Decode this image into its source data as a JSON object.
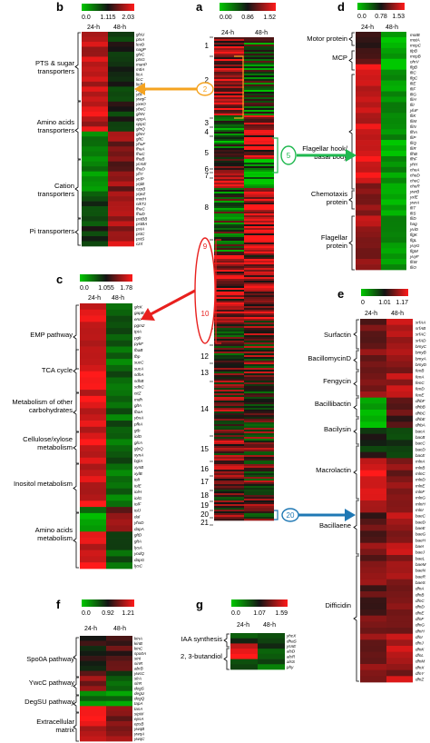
{
  "colors": {
    "low": "#00c800",
    "mid": "#141414",
    "high": "#ff1a1a",
    "orange": "#f5a320",
    "green": "#1fb84f",
    "red": "#e8201e",
    "blue": "#1f78b4"
  },
  "panels": {
    "a": {
      "label": "a",
      "ticks": [
        "0.00",
        "0.86",
        "1.52"
      ],
      "columns": [
        "24-h",
        "48-h"
      ],
      "clusters": [
        "1",
        "2",
        "3",
        "4",
        "5",
        "6",
        "7",
        "8",
        "9",
        "10",
        "11",
        "12",
        "13",
        "14",
        "15",
        "16",
        "17",
        "18",
        "19",
        "20",
        "21"
      ],
      "markers": {
        "m2": "2",
        "m5": "5",
        "m9": "9",
        "m10": "10",
        "m20": "20"
      }
    },
    "b": {
      "label": "b",
      "ticks": [
        "0.0",
        "1.115",
        "2.03"
      ],
      "columns": [
        "24-h",
        "48-h"
      ],
      "categories": [
        "PTS & sugar transporters",
        "Amino acids transporters",
        "Cation transporters",
        "Pi transporters"
      ],
      "genes": [
        "glsU",
        "ptsA",
        "levD",
        "nagP",
        "glvC",
        "ptsG",
        "manP",
        "mtlA",
        "licA",
        "licC",
        "licB",
        "ydhM",
        "yfiF",
        "ywqF",
        "yxeO",
        "ybeC",
        "glnN",
        "appA",
        "oppC",
        "glnQ",
        "glnH",
        "gltC",
        "yhuF",
        "fhuA",
        "fhuC",
        "fhuB",
        "ycmE",
        "fhuD",
        "yfiY",
        "yclP",
        "yqiB",
        "czpB",
        "yqeZ",
        "mntH",
        "nikT1",
        "fhuC",
        "fhuD",
        "pstBB",
        "pstBA",
        "pstA",
        "pstC",
        "pstS",
        "czrl"
      ]
    },
    "c": {
      "label": "c",
      "ticks": [
        "0.0",
        "1.055",
        "1.78"
      ],
      "columns": [
        "24-h",
        "48-h"
      ],
      "categories": [
        "EMP pathway",
        "TCA cycle",
        "Metabolism of other carbohydrates",
        "Cellulose/xylose metabolism",
        "Inositol metabolism",
        "Amino acids metabolism"
      ],
      "genes": [
        "glcK",
        "gapB",
        "eno",
        "pgm2",
        "tpiA",
        "pgk",
        "pykF",
        "fbaB",
        "fbp",
        "sucC",
        "sucA",
        "sdhA",
        "sdhB",
        "sdhC",
        "citZ",
        "mdh",
        "gltA",
        "fbaA",
        "ybxA",
        "pfkA",
        "gtb",
        "iolD",
        "glcA",
        "glpQ",
        "xynA",
        "bglA",
        "xynB",
        "xylB",
        "iolI",
        "iolE",
        "iolH",
        "iolG",
        "iolF",
        "iolJ",
        "dal",
        "yhxD",
        "dapA",
        "gltD",
        "gltA",
        "lysA",
        "yodQ",
        "dapG",
        "lysC"
      ]
    },
    "d": {
      "label": "d",
      "ticks": [
        "0.0",
        "0.78",
        "1.53"
      ],
      "columns": [
        "24-h",
        "48-h"
      ],
      "categories": [
        "Motor protein",
        "MCP",
        "Flagellar hook/ basal body",
        "Chemotaxis protein",
        "Flagellar protein"
      ],
      "genes": [
        "motB",
        "motA",
        "mcpC",
        "tlpB",
        "mcpB",
        "ohrV",
        "flgB",
        "fliC",
        "flgC",
        "fliE",
        "fliF",
        "fliG",
        "fliH",
        "fliI",
        "yluF",
        "fliK",
        "fliM",
        "fliN",
        "flhA",
        "fliP",
        "fliQ",
        "fliR",
        "flhB",
        "flhF",
        "yhH",
        "cheA",
        "cheD",
        "cheC",
        "cheR",
        "ywrB",
        "yxlE",
        "ywrA",
        "fliT",
        "fliS",
        "fliD",
        "hag",
        "yviD",
        "flgK",
        "flgL",
        "yvyG",
        "flgM",
        "yvyF",
        "fliW",
        "fliO"
      ]
    },
    "e": {
      "label": "e",
      "ticks": [
        "0",
        "1.01",
        "1.17"
      ],
      "columns": [
        "24-h",
        "48-h"
      ],
      "categories": [
        "Surfactin",
        "BacillomycinD",
        "Fengycin",
        "Bacillibactin",
        "Bacilysin",
        "Macrolactin",
        "Bacillaene",
        "Difficidin"
      ],
      "genes": [
        "srfAA",
        "srfAB",
        "srfAC",
        "srfAD",
        "bmyC",
        "bmyB",
        "bmyA",
        "bmyD",
        "fenB",
        "fenA",
        "fenC",
        "fenD",
        "fenE",
        "dhbF",
        "dhbB",
        "dhbC",
        "dhbE",
        "dhbA",
        "bacA",
        "bacB",
        "bacC",
        "bacD",
        "bacE",
        "mlnA",
        "mlnB",
        "mlnC",
        "mlnD",
        "mlnE",
        "mlnF",
        "mlnG",
        "mlnH",
        "mlnI",
        "baeC",
        "baeD",
        "baeE",
        "baeG",
        "baeH",
        "baeI",
        "baeJ",
        "baeL",
        "baeM",
        "baeN",
        "baeR",
        "baeS",
        "dfnA",
        "dfnB",
        "dfnC",
        "dfnD",
        "dfnE",
        "dfnF",
        "dfnG",
        "dfnH",
        "dfnI",
        "dfnJ",
        "dfnK",
        "dfnL",
        "dfnM",
        "dfnX",
        "dfnY",
        "dfnZ"
      ]
    },
    "f": {
      "label": "f",
      "ticks": [
        "0.0",
        "0.92",
        "1.21"
      ],
      "columns": [
        "24-h",
        "48-h"
      ],
      "categories": [
        "Spo0A pathway",
        "YwcC pathway",
        "DegSU pathway",
        "Extracellular matrix"
      ],
      "genes": [
        "kinA",
        "kinB",
        "kinC",
        "spo0A",
        "sinI",
        "sinR",
        "abrB",
        "ywcC",
        "slrA",
        "slrR",
        "degS",
        "degU",
        "degQ",
        "tapA",
        "tasA",
        "sipW",
        "epsA",
        "epsB",
        "ywqB",
        "ywqA",
        "ywqC"
      ]
    },
    "g": {
      "label": "g",
      "ticks": [
        "0.0",
        "1.07",
        "1.59"
      ],
      "columns": [
        "24-h",
        "48-h"
      ],
      "categories": [
        "IAA synthesis",
        "2, 3-butandiol"
      ],
      "genes": [
        "yhcX",
        "dhaS",
        "ysnE",
        "alsD",
        "alsR",
        "alsS",
        "phy"
      ]
    }
  }
}
